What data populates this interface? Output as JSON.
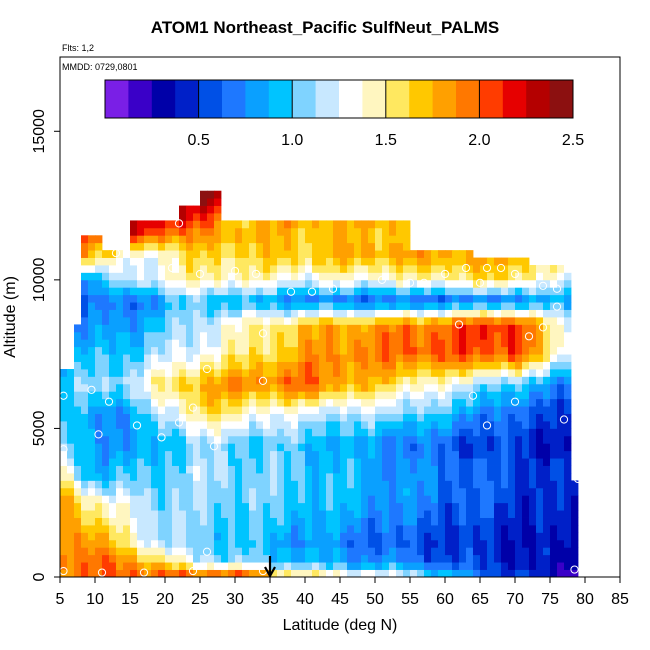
{
  "header": {
    "title": "ATOM1 Northeast_Pacific SulfNeut_PALMS",
    "flights_note": "Flts: 1,2",
    "date_note": "MMDD: 0729,0801"
  },
  "chart_data": {
    "type": "heatmap",
    "title": "ATOM1 Northeast_Pacific SulfNeut_PALMS",
    "xlabel": "Latitude (deg N)",
    "ylabel": "Altitude (m)",
    "xlim": [
      5,
      85
    ],
    "ylim": [
      0,
      17500
    ],
    "x_ticks": [
      "5",
      "10",
      "15",
      "20",
      "25",
      "30",
      "35",
      "40",
      "45",
      "50",
      "55",
      "60",
      "65",
      "70",
      "75",
      "80",
      "85"
    ],
    "y_ticks": [
      "0",
      "5000",
      "10000",
      "15000"
    ],
    "colorbar": {
      "range": [
        0,
        2.5
      ],
      "ticks": [
        "0.5",
        "1.0",
        "1.5",
        "2.0",
        "2.5"
      ],
      "colors": [
        "#7a1fe6",
        "#3a00c8",
        "#0000a8",
        "#0020c8",
        "#0050e6",
        "#1e78ff",
        "#0aa0ff",
        "#00c4ff",
        "#7fd3ff",
        "#c8e8ff",
        "#ffffff",
        "#fff6c0",
        "#ffe860",
        "#ffc800",
        "#ffa000",
        "#ff7800",
        "#ff3c00",
        "#e60000",
        "#b40000",
        "#8c1010"
      ]
    },
    "grid": {
      "x_start": 5,
      "x_step": 1,
      "y_step": 250,
      "column_tops_m": [
        [
          5,
          7,
          7000
        ],
        [
          7,
          8,
          8500
        ],
        [
          8,
          11,
          11500
        ],
        [
          11,
          15,
          10900
        ],
        [
          15,
          22,
          12000
        ],
        [
          22,
          25,
          12500
        ],
        [
          25,
          28,
          12800
        ],
        [
          28,
          37,
          12000
        ],
        [
          37,
          55,
          11800
        ],
        [
          55,
          64,
          11000
        ],
        [
          64,
          72,
          10700
        ],
        [
          72,
          78,
          10300
        ],
        [
          78,
          79,
          3250
        ]
      ],
      "layers": [
        {
          "z": 0,
          "fill": 2.4,
          "mod": [
            [
              5,
              1.9
            ],
            [
              30,
              2.2
            ],
            [
              40,
              1.6
            ],
            [
              55,
              1.3
            ],
            [
              65,
              0.7
            ],
            [
              78,
              0.2
            ]
          ]
        },
        {
          "z": 500,
          "fill": 2.15,
          "mod": [
            [
              5,
              2.0
            ],
            [
              15,
              1.9
            ],
            [
              25,
              1.2
            ],
            [
              40,
              0.9
            ],
            [
              60,
              0.6
            ],
            [
              78,
              0.3
            ]
          ]
        },
        {
          "z": 1200,
          "fill": 1.0,
          "mod": [
            [
              5,
              2.0
            ],
            [
              10,
              1.8
            ],
            [
              20,
              1.1
            ],
            [
              40,
              0.8
            ],
            [
              60,
              0.5
            ],
            [
              78,
              0.35
            ]
          ]
        },
        {
          "z": 2500,
          "fill": 0.95,
          "mod": [
            [
              5,
              1.9
            ],
            [
              12,
              1.3
            ],
            [
              20,
              1.1
            ],
            [
              40,
              1.0
            ],
            [
              60,
              0.65
            ],
            [
              78,
              0.4
            ]
          ]
        },
        {
          "z": 3500,
          "fill": 0.9,
          "mod": [
            [
              5,
              1.4
            ],
            [
              10,
              0.85
            ],
            [
              25,
              1.15
            ],
            [
              40,
              1.0
            ],
            [
              60,
              0.7
            ],
            [
              78,
              0.45
            ]
          ]
        },
        {
          "z": 4500,
          "fill": 0.8,
          "mod": [
            [
              5,
              1.0
            ],
            [
              15,
              0.75
            ],
            [
              25,
              1.1
            ],
            [
              40,
              0.95
            ],
            [
              60,
              0.6
            ],
            [
              78,
              0.4
            ]
          ]
        },
        {
          "z": 5500,
          "fill": 1.0,
          "mod": [
            [
              5,
              0.9
            ],
            [
              15,
              0.8
            ],
            [
              25,
              1.6
            ],
            [
              40,
              1.2
            ],
            [
              55,
              1.1
            ],
            [
              70,
              0.6
            ],
            [
              78,
              0.5
            ]
          ]
        },
        {
          "z": 6500,
          "fill": 1.45,
          "mod": [
            [
              5,
              1.0
            ],
            [
              15,
              1.2
            ],
            [
              25,
              1.8
            ],
            [
              40,
              2.0
            ],
            [
              55,
              1.5
            ],
            [
              70,
              1.0
            ],
            [
              78,
              0.7
            ]
          ]
        },
        {
          "z": 7500,
          "fill": 1.6,
          "mod": [
            [
              5,
              0.8
            ],
            [
              15,
              1.0
            ],
            [
              25,
              1.3
            ],
            [
              40,
              1.8
            ],
            [
              55,
              2.0
            ],
            [
              70,
              2.1
            ],
            [
              78,
              1.2
            ]
          ]
        },
        {
          "z": 8500,
          "fill": 1.4,
          "mod": [
            [
              5,
              0.7
            ],
            [
              15,
              0.8
            ],
            [
              25,
              1.2
            ],
            [
              40,
              1.7
            ],
            [
              55,
              1.9
            ],
            [
              70,
              2.2
            ],
            [
              78,
              1.2
            ]
          ]
        },
        {
          "z": 9300,
          "fill": 0.7,
          "mod": [
            [
              5,
              0.6
            ],
            [
              15,
              0.7
            ],
            [
              25,
              1.0
            ],
            [
              40,
              0.7
            ],
            [
              55,
              0.6
            ],
            [
              70,
              0.7
            ],
            [
              78,
              0.8
            ]
          ]
        },
        {
          "z": 10000,
          "fill": 1.2,
          "mod": [
            [
              5,
              0.5
            ],
            [
              15,
              1.2
            ],
            [
              25,
              1.5
            ],
            [
              40,
              1.3
            ],
            [
              55,
              1.4
            ],
            [
              70,
              1.6
            ],
            [
              78,
              1.1
            ]
          ]
        },
        {
          "z": 10800,
          "fill": 1.6,
          "mod": [
            [
              5,
              2.2
            ],
            [
              15,
              1.2
            ],
            [
              25,
              1.6
            ],
            [
              40,
              1.7
            ],
            [
              55,
              1.8
            ],
            [
              70,
              1.8
            ],
            [
              78,
              1.5
            ]
          ]
        },
        {
          "z": 11500,
          "fill": 1.8,
          "mod": [
            [
              15,
              2.1
            ],
            [
              25,
              1.8
            ],
            [
              40,
              1.7
            ],
            [
              55,
              1.7
            ]
          ]
        },
        {
          "z": 12100,
          "fill": 2.0,
          "mod": [
            [
              22,
              2.3
            ],
            [
              30,
              1.7
            ],
            [
              37,
              1.8
            ]
          ]
        },
        {
          "z": 12800,
          "fill": 2.3,
          "mod": [
            [
              25,
              2.4
            ],
            [
              28,
              2.3
            ]
          ]
        }
      ]
    },
    "samples": [
      [
        5.5,
        200
      ],
      [
        11,
        150
      ],
      [
        17,
        150
      ],
      [
        24,
        200
      ],
      [
        26,
        850
      ],
      [
        34,
        200
      ],
      [
        78.5,
        250
      ],
      [
        5.5,
        4300
      ],
      [
        10.5,
        4800
      ],
      [
        19.5,
        4700
      ],
      [
        27,
        4400
      ],
      [
        16,
        5100
      ],
      [
        22,
        5200
      ],
      [
        5.5,
        6100
      ],
      [
        9.5,
        6300
      ],
      [
        12,
        5900
      ],
      [
        24,
        5700
      ],
      [
        34,
        6600
      ],
      [
        64,
        6100
      ],
      [
        66,
        5100
      ],
      [
        70,
        5900
      ],
      [
        77,
        5300
      ],
      [
        79,
        3300
      ],
      [
        19,
        7100
      ],
      [
        26,
        7000
      ],
      [
        34,
        8200
      ],
      [
        62,
        8500
      ],
      [
        72,
        8100
      ],
      [
        74,
        8400
      ],
      [
        7,
        10500
      ],
      [
        13,
        10900
      ],
      [
        22,
        11900
      ],
      [
        29,
        12700
      ],
      [
        31,
        12700
      ],
      [
        21,
        10400
      ],
      [
        25,
        10200
      ],
      [
        30,
        10300
      ],
      [
        33,
        10200
      ],
      [
        38,
        9600
      ],
      [
        41,
        9600
      ],
      [
        44,
        9700
      ],
      [
        51,
        10000
      ],
      [
        57,
        9900
      ],
      [
        60,
        10200
      ],
      [
        63,
        10400
      ],
      [
        66,
        10400
      ],
      [
        68,
        10400
      ],
      [
        70,
        10200
      ],
      [
        74,
        9800
      ],
      [
        76,
        9700
      ],
      [
        76,
        9100
      ],
      [
        65,
        9900
      ],
      [
        55,
        9900
      ]
    ],
    "marker": {
      "latitude": 35,
      "label": "arrow"
    }
  }
}
